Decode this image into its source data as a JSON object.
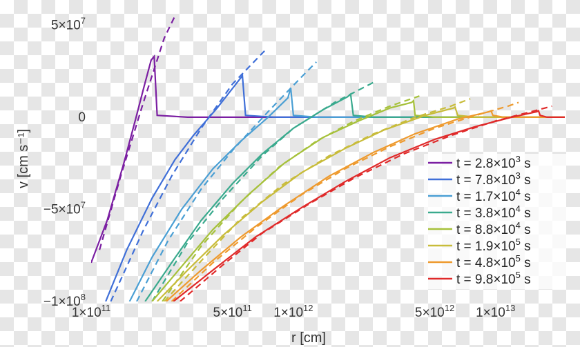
{
  "chart_data": {
    "type": "line",
    "xlabel": "r [cm]",
    "ylabel": "v [cm s⁻¹]",
    "xscale": "log",
    "xlim": [
      100000000000.0,
      22000000000000.0
    ],
    "ylim": [
      -100000000.0,
      58000000.0
    ],
    "grid": false,
    "legend_position": "lower-right",
    "x_ticks": [
      {
        "value": 100000000000.0,
        "label": "1×10",
        "exp": "11"
      },
      {
        "value": 500000000000.0,
        "label": "5×10",
        "exp": "11"
      },
      {
        "value": 1000000000000.0,
        "label": "1×10",
        "exp": "12"
      },
      {
        "value": 5000000000000.0,
        "label": "5×10",
        "exp": "12"
      },
      {
        "value": 10000000000000.0,
        "label": "1×10",
        "exp": "13"
      }
    ],
    "y_ticks": [
      {
        "value": 50000000.0,
        "label": "5×10",
        "exp": "7"
      },
      {
        "value": 0,
        "label": "0",
        "exp": ""
      },
      {
        "value": -50000000.0,
        "label": "−5×10",
        "exp": "7"
      },
      {
        "value": -100000000.0,
        "label": "−1×10",
        "exp": "8"
      }
    ],
    "series": [
      {
        "name": "t = 2.8×10",
        "exp": "3",
        "unit": "s",
        "color": "#7b1fa2",
        "solid": [
          [
            100000000000.0,
            -79000000.0
          ],
          [
            120000000000.0,
            -56000000.0
          ],
          [
            145000000000.0,
            -25000000.0
          ],
          [
            165000000000.0,
            -2000000.0
          ],
          [
            183000000000.0,
            17000000.0
          ],
          [
            198000000000.0,
            31000000.0
          ],
          [
            205000000000.0,
            33000000.0
          ],
          [
            212000000000.0,
            1000000.0
          ],
          [
            300000000000.0,
            0
          ],
          [
            1000000000000.0,
            0
          ],
          [
            22000000000000.0,
            0
          ]
        ],
        "dashed": [
          [
            110000000000.0,
            -72000000.0
          ],
          [
            140000000000.0,
            -32000000.0
          ],
          [
            180000000000.0,
            7000000.0
          ],
          [
            230000000000.0,
            43000000.0
          ],
          [
            260000000000.0,
            55000000.0
          ]
        ]
      },
      {
        "name": "t = 7.8×10",
        "exp": "3",
        "unit": "s",
        "color": "#3f6fd8",
        "solid": [
          [
            118000000000.0,
            -100000000.0
          ],
          [
            150000000000.0,
            -72000000.0
          ],
          [
            200000000000.0,
            -44000000.0
          ],
          [
            260000000000.0,
            -23000000.0
          ],
          [
            320000000000.0,
            -10000000.0
          ],
          [
            420000000000.0,
            5000000.0
          ],
          [
            520000000000.0,
            18000000.0
          ],
          [
            560000000000.0,
            22500000.0
          ],
          [
            580000000000.0,
            1000000.0
          ],
          [
            800000000000.0,
            0
          ],
          [
            22000000000000.0,
            0
          ]
        ],
        "dashed": [
          [
            125000000000.0,
            -100000000.0
          ],
          [
            180000000000.0,
            -62000000.0
          ],
          [
            250000000000.0,
            -32000000.0
          ],
          [
            350000000000.0,
            -6000000.0
          ],
          [
            500000000000.0,
            18000000.0
          ],
          [
            720000000000.0,
            36000000.0
          ]
        ]
      },
      {
        "name": "t = 1.7×10",
        "exp": "4",
        "unit": "s",
        "color": "#4a9fd4",
        "solid": [
          [
            155000000000.0,
            -100000000.0
          ],
          [
            200000000000.0,
            -76000000.0
          ],
          [
            280000000000.0,
            -50000000.0
          ],
          [
            400000000000.0,
            -28000000.0
          ],
          [
            550000000000.0,
            -13000000.0
          ],
          [
            750000000000.0,
            0
          ],
          [
            940000000000.0,
            10500000.0
          ],
          [
            970000000000.0,
            16000000.0
          ],
          [
            1000000000000.0,
            1000000.0
          ],
          [
            1300000000000.0,
            0
          ],
          [
            22000000000000.0,
            0
          ]
        ],
        "dashed": [
          [
            168000000000.0,
            -100000000.0
          ],
          [
            240000000000.0,
            -67000000.0
          ],
          [
            350000000000.0,
            -39000000.0
          ],
          [
            500000000000.0,
            -18000000.0
          ],
          [
            750000000000.0,
            3000000.0
          ],
          [
            1100000000000.0,
            22000000.0
          ],
          [
            1300000000000.0,
            30000000.0
          ]
        ]
      },
      {
        "name": "t = 3.8×10",
        "exp": "4",
        "unit": "s",
        "color": "#3aaa8e",
        "solid": [
          [
            185000000000.0,
            -100000000.0
          ],
          [
            250000000000.0,
            -79000000.0
          ],
          [
            350000000000.0,
            -56000000.0
          ],
          [
            500000000000.0,
            -36000000.0
          ],
          [
            700000000000.0,
            -20000000.0
          ],
          [
            1000000000000.0,
            -6000000.0
          ],
          [
            1400000000000.0,
            4000000.0
          ],
          [
            1850000000000.0,
            11000000.0
          ],
          [
            1920000000000.0,
            12500000.0
          ],
          [
            1980000000000.0,
            1000000.0
          ],
          [
            2500000000000.0,
            0
          ],
          [
            22000000000000.0,
            0
          ]
        ],
        "dashed": [
          [
            200000000000.0,
            -100000000.0
          ],
          [
            300000000000.0,
            -68000000.0
          ],
          [
            450000000000.0,
            -44000000.0
          ],
          [
            700000000000.0,
            -21000000.0
          ],
          [
            1000000000000.0,
            -6000000.0
          ],
          [
            1600000000000.0,
            8000000.0
          ],
          [
            2500000000000.0,
            19000000.0
          ]
        ]
      },
      {
        "name": "t = 8.8×10",
        "exp": "4",
        "unit": "s",
        "color": "#a6c13a",
        "solid": [
          [
            200000000000.0,
            -100000000.0
          ],
          [
            280000000000.0,
            -81000000.0
          ],
          [
            400000000000.0,
            -61000000.0
          ],
          [
            600000000000.0,
            -42000000.0
          ],
          [
            900000000000.0,
            -25000000.0
          ],
          [
            1400000000000.0,
            -11000000.0
          ],
          [
            2100000000000.0,
            -2000000.0
          ],
          [
            3000000000000.0,
            5000000.0
          ],
          [
            3850000000000.0,
            8000000.0
          ],
          [
            3930000000000.0,
            9000000.0
          ],
          [
            4000000000000.0,
            1000000.0
          ],
          [
            5000000000000.0,
            0
          ],
          [
            22000000000000.0,
            0
          ]
        ],
        "dashed": [
          [
            225000000000.0,
            -100000000.0
          ],
          [
            350000000000.0,
            -70000000.0
          ],
          [
            550000000000.0,
            -46000000.0
          ],
          [
            850000000000.0,
            -27000000.0
          ],
          [
            1300000000000.0,
            -13000000.0
          ],
          [
            2000000000000.0,
            -2000000.0
          ],
          [
            3000000000000.0,
            6000000.0
          ],
          [
            4200000000000.0,
            11500000.0
          ]
        ]
      },
      {
        "name": "t = 1.9×10",
        "exp": "5",
        "unit": "s",
        "color": "#c8bc3a",
        "solid": [
          [
            212000000000.0,
            -100000000.0
          ],
          [
            300000000000.0,
            -83000000.0
          ],
          [
            450000000000.0,
            -64000000.0
          ],
          [
            700000000000.0,
            -46000000.0
          ],
          [
            1100000000000.0,
            -30000000.0
          ],
          [
            1800000000000.0,
            -17000000.0
          ],
          [
            2800000000000.0,
            -7000000.0
          ],
          [
            4500000000000.0,
            1000000.0
          ],
          [
            6200000000000.0,
            5000000.0
          ],
          [
            6300000000000.0,
            5500000.0
          ],
          [
            6500000000000.0,
            1000000.0
          ],
          [
            8000000000000.0,
            0
          ],
          [
            22000000000000.0,
            0
          ]
        ],
        "dashed": [
          [
            230000000000.0,
            -100000000.0
          ],
          [
            350000000000.0,
            -78000000.0
          ],
          [
            550000000000.0,
            -55000000.0
          ],
          [
            900000000000.0,
            -36000000.0
          ],
          [
            1500000000000.0,
            -21000000.0
          ],
          [
            2500000000000.0,
            -9000000.0
          ],
          [
            4000000000000.0,
            0
          ],
          [
            6000000000000.0,
            6000000.0
          ],
          [
            7500000000000.0,
            10000000.0
          ]
        ]
      },
      {
        "name": "t = 4.8×10",
        "exp": "5",
        "unit": "s",
        "color": "#ee9a2e",
        "solid": [
          [
            235000000000.0,
            -100000000.0
          ],
          [
            350000000000.0,
            -83000000.0
          ],
          [
            550000000000.0,
            -65000000.0
          ],
          [
            900000000000.0,
            -48000000.0
          ],
          [
            1500000000000.0,
            -32000000.0
          ],
          [
            2500000000000.0,
            -19000000.0
          ],
          [
            4000000000000.0,
            -9000000.0
          ],
          [
            6500000000000.0,
            -1000000.0
          ],
          [
            9300000000000.0,
            3000000.0
          ],
          [
            9500000000000.0,
            3500000.0
          ],
          [
            9700000000000.0,
            1000000.0
          ],
          [
            11000000000000.0,
            0
          ],
          [
            22000000000000.0,
            0
          ]
        ],
        "dashed": [
          [
            250000000000.0,
            -100000000.0
          ],
          [
            400000000000.0,
            -79000000.0
          ],
          [
            650000000000.0,
            -60000000.0
          ],
          [
            1100000000000.0,
            -42000000.0
          ],
          [
            1800000000000.0,
            -28000000.0
          ],
          [
            3000000000000.0,
            -16000000.0
          ],
          [
            5000000000000.0,
            -6000000.0
          ],
          [
            8000000000000.0,
            1000000.0
          ],
          [
            11500000000000.0,
            6000000.0
          ],
          [
            13000000000000.0,
            8000000.0
          ]
        ]
      },
      {
        "name": "t = 9.8×10",
        "exp": "5",
        "unit": "s",
        "color": "#e02a2a",
        "solid": [
          [
            255000000000.0,
            -100000000.0
          ],
          [
            400000000000.0,
            -83000000.0
          ],
          [
            650000000000.0,
            -65000000.0
          ],
          [
            1100000000000.0,
            -49000000.0
          ],
          [
            1800000000000.0,
            -35000000.0
          ],
          [
            3000000000000.0,
            -22000000.0
          ],
          [
            5000000000000.0,
            -12000000.0
          ],
          [
            8000000000000.0,
            -5000000.0
          ],
          [
            12000000000000.0,
            0
          ],
          [
            16000000000000.0,
            3000000.0
          ],
          [
            16300000000000.0,
            3500000.0
          ],
          [
            16600000000000.0,
            1000000.0
          ],
          [
            18000000000000.0,
            0
          ],
          [
            22000000000000.0,
            0
          ]
        ],
        "dashed": [
          [
            275000000000.0,
            -100000000.0
          ],
          [
            450000000000.0,
            -80000000.0
          ],
          [
            700000000000.0,
            -63000000.0
          ],
          [
            1200000000000.0,
            -47000000.0
          ],
          [
            2000000000000.0,
            -33000000.0
          ],
          [
            3500000000000.0,
            -20000000.0
          ],
          [
            6000000000000.0,
            -10000000.0
          ],
          [
            10000000000000.0,
            -2000000.0
          ],
          [
            15000000000000.0,
            3000000.0
          ],
          [
            19000000000000.0,
            6000000.0
          ]
        ]
      }
    ]
  }
}
